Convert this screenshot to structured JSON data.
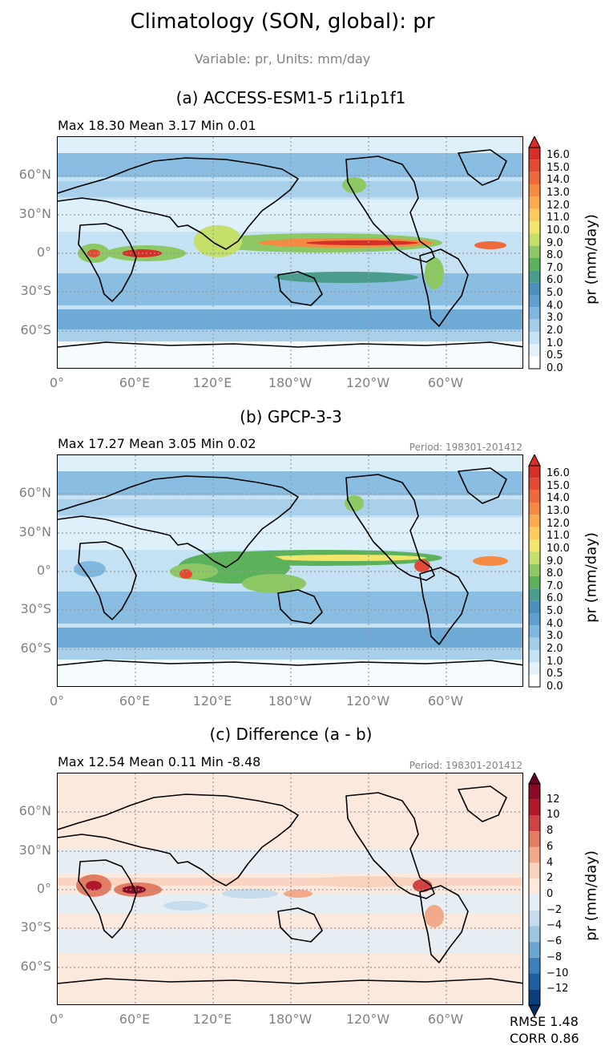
{
  "title": "Climatology (SON, global): pr",
  "subtitle": "Variable: pr, Units: mm/day",
  "lat_ticks": [
    "60°N",
    "30°N",
    "0°",
    "30°S",
    "60°S"
  ],
  "lon_ticks": [
    "0°",
    "60°E",
    "120°E",
    "180°W",
    "120°W",
    "60°W"
  ],
  "panels": [
    {
      "title": "(a) ACCESS-ESM1-5 r1i1p1f1",
      "stats": "Max 18.30 Mean 3.17 Min 0.01",
      "period": ""
    },
    {
      "title": "(b) GPCP-3-3",
      "stats": "Max 17.27 Mean 3.05 Min 0.02",
      "period": "Period: 198301-201412"
    },
    {
      "title": "(c) Difference (a - b)",
      "stats": "Max 12.54 Mean 0.11 Min -8.48",
      "period": "Period: 198301-201412"
    }
  ],
  "colorbar_pr": {
    "label": "pr (mm/day)",
    "ticks": [
      "16.0",
      "15.0",
      "14.0",
      "13.0",
      "12.0",
      "11.0",
      "10.0",
      "9.0",
      "8.0",
      "7.0",
      "6.0",
      "5.0",
      "4.0",
      "3.0",
      "2.0",
      "1.0",
      "0.5",
      "0.0"
    ],
    "colors": [
      "#d62f27",
      "#e34a33",
      "#ee6a3d",
      "#f58a43",
      "#f9ab4e",
      "#fbcb5c",
      "#f1e56a",
      "#c4e06a",
      "#8dc865",
      "#5bb25b",
      "#4a9d8c",
      "#4d8fbd",
      "#5fa0d0",
      "#7fb7de",
      "#a3cde9",
      "#c4e2f3",
      "#e3f2fa",
      "#ffffff"
    ],
    "extend_color": "#d62f27"
  },
  "colorbar_diff": {
    "label": "pr (mm/day)",
    "ticks": [
      "12",
      "10",
      "8",
      "6",
      "4",
      "2",
      "0",
      "−2",
      "−4",
      "−6",
      "−8",
      "−10",
      "−12"
    ],
    "colors": [
      "#8a0b25",
      "#b2182b",
      "#cf4342",
      "#e27c62",
      "#f1a989",
      "#f9d2bd",
      "#fbe9de",
      "#e3eef6",
      "#c6dbeb",
      "#9dc6e0",
      "#6aa6cf",
      "#3b80b9",
      "#1e5fa2",
      "#0b3f7c"
    ],
    "extend_top": "#67001f",
    "extend_bottom": "#053061"
  },
  "metrics": {
    "rmse": "RMSE 1.48",
    "corr": "CORR 0.86"
  },
  "chart_data": [
    {
      "type": "heatmap",
      "title": "(a) ACCESS-ESM1-5 r1i1p1f1",
      "variable": "pr",
      "units": "mm/day",
      "stats": {
        "max": 18.3,
        "mean": 3.17,
        "min": 0.01
      },
      "colorbar_levels": [
        0.0,
        0.5,
        1.0,
        2.0,
        3.0,
        4.0,
        5.0,
        6.0,
        7.0,
        8.0,
        9.0,
        10.0,
        11.0,
        12.0,
        13.0,
        14.0,
        15.0,
        16.0
      ]
    },
    {
      "type": "heatmap",
      "title": "(b) GPCP-3-3",
      "variable": "pr",
      "units": "mm/day",
      "stats": {
        "max": 17.27,
        "mean": 3.05,
        "min": 0.02
      },
      "colorbar_levels": [
        0.0,
        0.5,
        1.0,
        2.0,
        3.0,
        4.0,
        5.0,
        6.0,
        7.0,
        8.0,
        9.0,
        10.0,
        11.0,
        12.0,
        13.0,
        14.0,
        15.0,
        16.0
      ]
    },
    {
      "type": "heatmap",
      "title": "(c) Difference (a - b)",
      "variable": "pr",
      "units": "mm/day",
      "stats": {
        "max": 12.54,
        "mean": 0.11,
        "min": -8.48
      },
      "colorbar_levels": [
        -12,
        -10,
        -8,
        -6,
        -4,
        -2,
        0,
        2,
        4,
        6,
        8,
        10,
        12
      ],
      "rmse": 1.48,
      "corr": 0.86
    }
  ]
}
